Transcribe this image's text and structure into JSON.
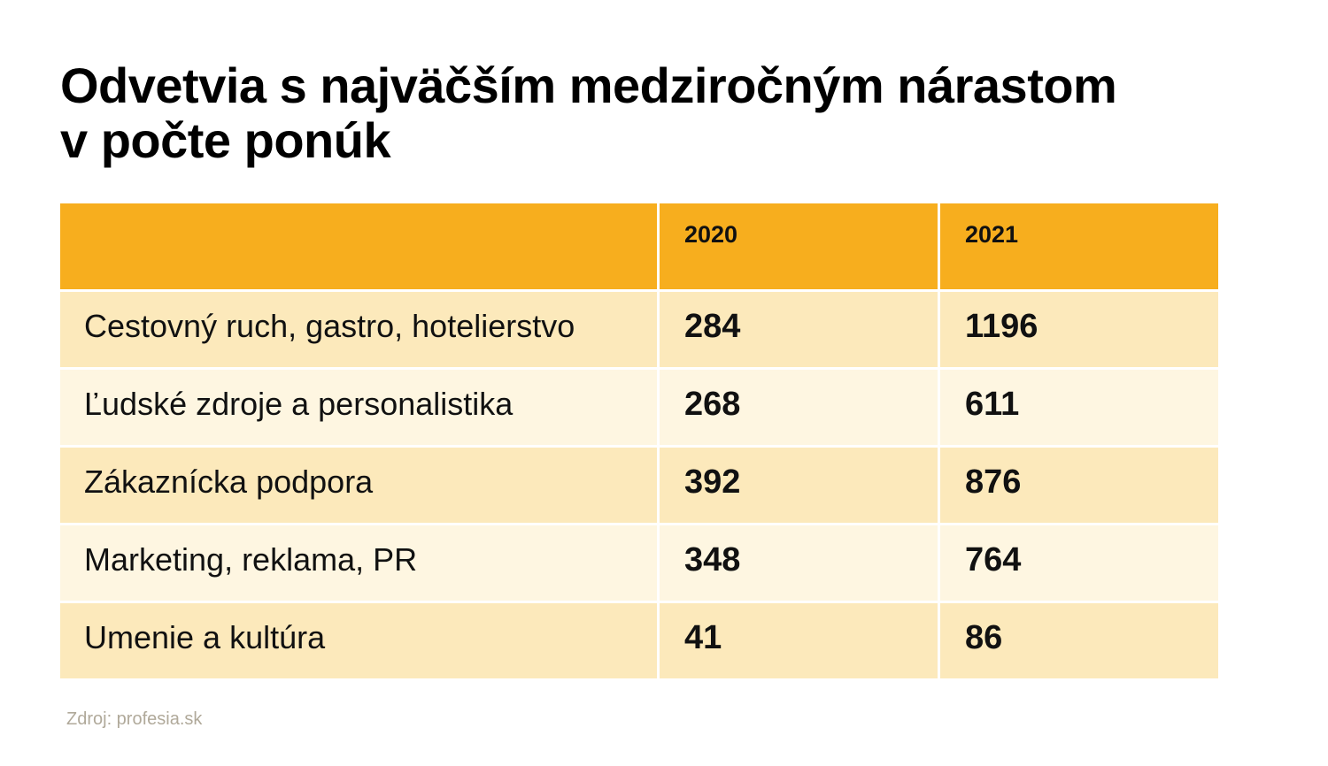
{
  "title_line1": "Odvetvia s najväčším medziročným nárastom",
  "title_line2": "v počte ponúk",
  "colors": {
    "header_bg": "#F7AE1E",
    "row_bg_dark": "#FCE9BB",
    "row_bg_light": "#FEF6E1",
    "source_text": "#B0A99A"
  },
  "chart_data": {
    "type": "table",
    "columns": [
      "",
      "2020",
      "2021"
    ],
    "rows": [
      {
        "label": "Cestovný ruch, gastro, hotelierstvo",
        "y2020": "284",
        "y2021": "1196"
      },
      {
        "label": "Ľudské zdroje a personalistika",
        "y2020": "268",
        "y2021": "611"
      },
      {
        "label": "Zákaznícka podpora",
        "y2020": "392",
        "y2021": "876"
      },
      {
        "label": "Marketing, reklama, PR",
        "y2020": "348",
        "y2021": "764"
      },
      {
        "label": "Umenie a kultúra",
        "y2020": "41",
        "y2021": "86"
      }
    ]
  },
  "source": "Zdroj: profesia.sk"
}
